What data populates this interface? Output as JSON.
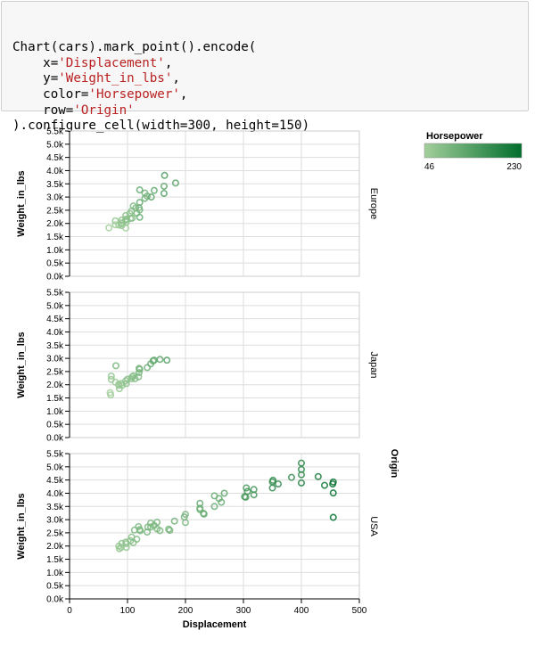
{
  "code": {
    "lines": [
      [
        {
          "t": "Chart(cars).mark_point().encode(",
          "k": "plain"
        }
      ],
      [
        {
          "t": "    x=",
          "k": "plain"
        },
        {
          "t": "'Displacement'",
          "k": "str"
        },
        {
          "t": ",",
          "k": "plain"
        }
      ],
      [
        {
          "t": "    y=",
          "k": "plain"
        },
        {
          "t": "'Weight_in_lbs'",
          "k": "str"
        },
        {
          "t": ",",
          "k": "plain"
        }
      ],
      [
        {
          "t": "    color=",
          "k": "plain"
        },
        {
          "t": "'Horsepower'",
          "k": "str"
        },
        {
          "t": ",",
          "k": "plain"
        }
      ],
      [
        {
          "t": "    row=",
          "k": "plain"
        },
        {
          "t": "'Origin'",
          "k": "str"
        }
      ],
      [
        {
          "t": ").configure_cell(width=300, height=150)",
          "k": "plain"
        }
      ]
    ]
  },
  "chart_data": {
    "type": "scatter",
    "mark": "point (hollow circle)",
    "xlabel": "Displacement",
    "ylabel": "Weight_in_lbs",
    "xlim": [
      0,
      500
    ],
    "ylim": [
      0,
      5500
    ],
    "x_ticks": [
      0,
      100,
      200,
      300,
      400,
      500
    ],
    "x_tick_labels": [
      "0",
      "100",
      "200",
      "300",
      "400",
      "500"
    ],
    "y_ticks": [
      0,
      500,
      1000,
      1500,
      2000,
      2500,
      3000,
      3500,
      4000,
      4500,
      5000,
      5500
    ],
    "y_tick_labels": [
      "0.0k",
      "0.5k",
      "1.0k",
      "1.5k",
      "2.0k",
      "2.5k",
      "3.0k",
      "3.5k",
      "4.0k",
      "4.5k",
      "5.0k",
      "5.5k"
    ],
    "grid": true,
    "row_field_title": "Origin",
    "color_legend": {
      "title": "Horsepower",
      "min": 46,
      "max": 230,
      "min_label": "46",
      "max_label": "230",
      "color_low": "#a3cf9b",
      "color_high": "#006d2c",
      "placement": "top-right"
    },
    "panels": [
      {
        "row": "Europe",
        "points": [
          [
            68,
            1835,
            46
          ],
          [
            79,
            1950,
            48
          ],
          [
            79,
            2100,
            60
          ],
          [
            85,
            1940,
            52
          ],
          [
            89,
            2020,
            60
          ],
          [
            90,
            1920,
            67
          ],
          [
            90,
            2130,
            70
          ],
          [
            91,
            1990,
            67
          ],
          [
            97,
            2130,
            71
          ],
          [
            97,
            1825,
            46
          ],
          [
            97,
            2300,
            75
          ],
          [
            98,
            2045,
            68
          ],
          [
            98,
            2164,
            78
          ],
          [
            104,
            2375,
            72
          ],
          [
            105,
            2190,
            74
          ],
          [
            107,
            2472,
            75
          ],
          [
            108,
            2200,
            80
          ],
          [
            110,
            2660,
            87
          ],
          [
            114,
            2582,
            91
          ],
          [
            116,
            2395,
            90
          ],
          [
            120,
            2600,
            88
          ],
          [
            121,
            2234,
            112
          ],
          [
            121,
            2511,
            98
          ],
          [
            121,
            2795,
            110
          ],
          [
            121,
            3270,
            115
          ],
          [
            130,
            2950,
            103
          ],
          [
            130,
            3150,
            102
          ],
          [
            134,
            3035,
            95
          ],
          [
            141,
            3000,
            125
          ],
          [
            146,
            3250,
            120
          ],
          [
            163,
            3140,
            133
          ],
          [
            163,
            3410,
            125
          ],
          [
            164,
            3820,
            140
          ],
          [
            183,
            3530,
            125
          ]
        ]
      },
      {
        "row": "Japan",
        "points": [
          [
            70,
            1700,
            46
          ],
          [
            71,
            1613,
            52
          ],
          [
            72,
            2200,
            60
          ],
          [
            72,
            2330,
            65
          ],
          [
            79,
            2100,
            53
          ],
          [
            80,
            2720,
            90
          ],
          [
            85,
            1975,
            55
          ],
          [
            85,
            2020,
            58
          ],
          [
            86,
            1850,
            61
          ],
          [
            89,
            2050,
            60
          ],
          [
            91,
            1980,
            67
          ],
          [
            97,
            2150,
            70
          ],
          [
            98,
            2045,
            68
          ],
          [
            100,
            2210,
            75
          ],
          [
            107,
            2225,
            72
          ],
          [
            108,
            2300,
            75
          ],
          [
            110,
            2340,
            78
          ],
          [
            113,
            2230,
            86
          ],
          [
            119,
            2300,
            88
          ],
          [
            120,
            2460,
            92
          ],
          [
            120,
            2620,
            97
          ],
          [
            121,
            2580,
            100
          ],
          [
            134,
            2650,
            105
          ],
          [
            140,
            2790,
            110
          ],
          [
            144,
            2900,
            115
          ],
          [
            146,
            2930,
            120
          ],
          [
            156,
            2960,
            122
          ],
          [
            168,
            2930,
            132
          ]
        ]
      },
      {
        "row": "USA",
        "points": [
          [
            85,
            2000,
            60
          ],
          [
            86,
            1900,
            62
          ],
          [
            89,
            1950,
            65
          ],
          [
            90,
            2100,
            68
          ],
          [
            97,
            2150,
            70
          ],
          [
            98,
            1950,
            65
          ],
          [
            98,
            2090,
            70
          ],
          [
            105,
            2200,
            74
          ],
          [
            107,
            2340,
            75
          ],
          [
            110,
            2130,
            78
          ],
          [
            112,
            2605,
            88
          ],
          [
            116,
            2260,
            82
          ],
          [
            119,
            2735,
            90
          ],
          [
            121,
            2625,
            92
          ],
          [
            122,
            2580,
            90
          ],
          [
            134,
            2530,
            94
          ],
          [
            135,
            2720,
            95
          ],
          [
            140,
            2720,
            88
          ],
          [
            140,
            2870,
            90
          ],
          [
            146,
            2780,
            92
          ],
          [
            151,
            2650,
            90
          ],
          [
            151,
            2900,
            95
          ],
          [
            156,
            2585,
            92
          ],
          [
            171,
            2640,
            95
          ],
          [
            173,
            2595,
            96
          ],
          [
            181,
            2945,
            100
          ],
          [
            198,
            3100,
            100
          ],
          [
            200,
            2890,
            88
          ],
          [
            200,
            3200,
            95
          ],
          [
            225,
            3430,
            105
          ],
          [
            225,
            3620,
            110
          ],
          [
            225,
            3380,
            105
          ],
          [
            231,
            3240,
            110
          ],
          [
            232,
            3210,
            110
          ],
          [
            250,
            3500,
            110
          ],
          [
            250,
            3900,
            110
          ],
          [
            258,
            3800,
            110
          ],
          [
            262,
            3660,
            110
          ],
          [
            267,
            4000,
            125
          ],
          [
            302,
            3870,
            140
          ],
          [
            304,
            3850,
            150
          ],
          [
            305,
            4200,
            145
          ],
          [
            307,
            4070,
            150
          ],
          [
            318,
            3940,
            150
          ],
          [
            318,
            4140,
            150
          ],
          [
            350,
            4430,
            165
          ],
          [
            350,
            4200,
            175
          ],
          [
            351,
            4490,
            170
          ],
          [
            360,
            4350,
            175
          ],
          [
            383,
            4600,
            170
          ],
          [
            400,
            4700,
            175
          ],
          [
            400,
            5140,
            180
          ],
          [
            400,
            4900,
            175
          ],
          [
            400,
            4390,
            190
          ],
          [
            429,
            4630,
            198
          ],
          [
            440,
            4300,
            215
          ],
          [
            454,
            4350,
            220
          ],
          [
            455,
            4010,
            225
          ],
          [
            455,
            3086,
            225
          ],
          [
            455,
            4425,
            225
          ]
        ]
      }
    ]
  }
}
